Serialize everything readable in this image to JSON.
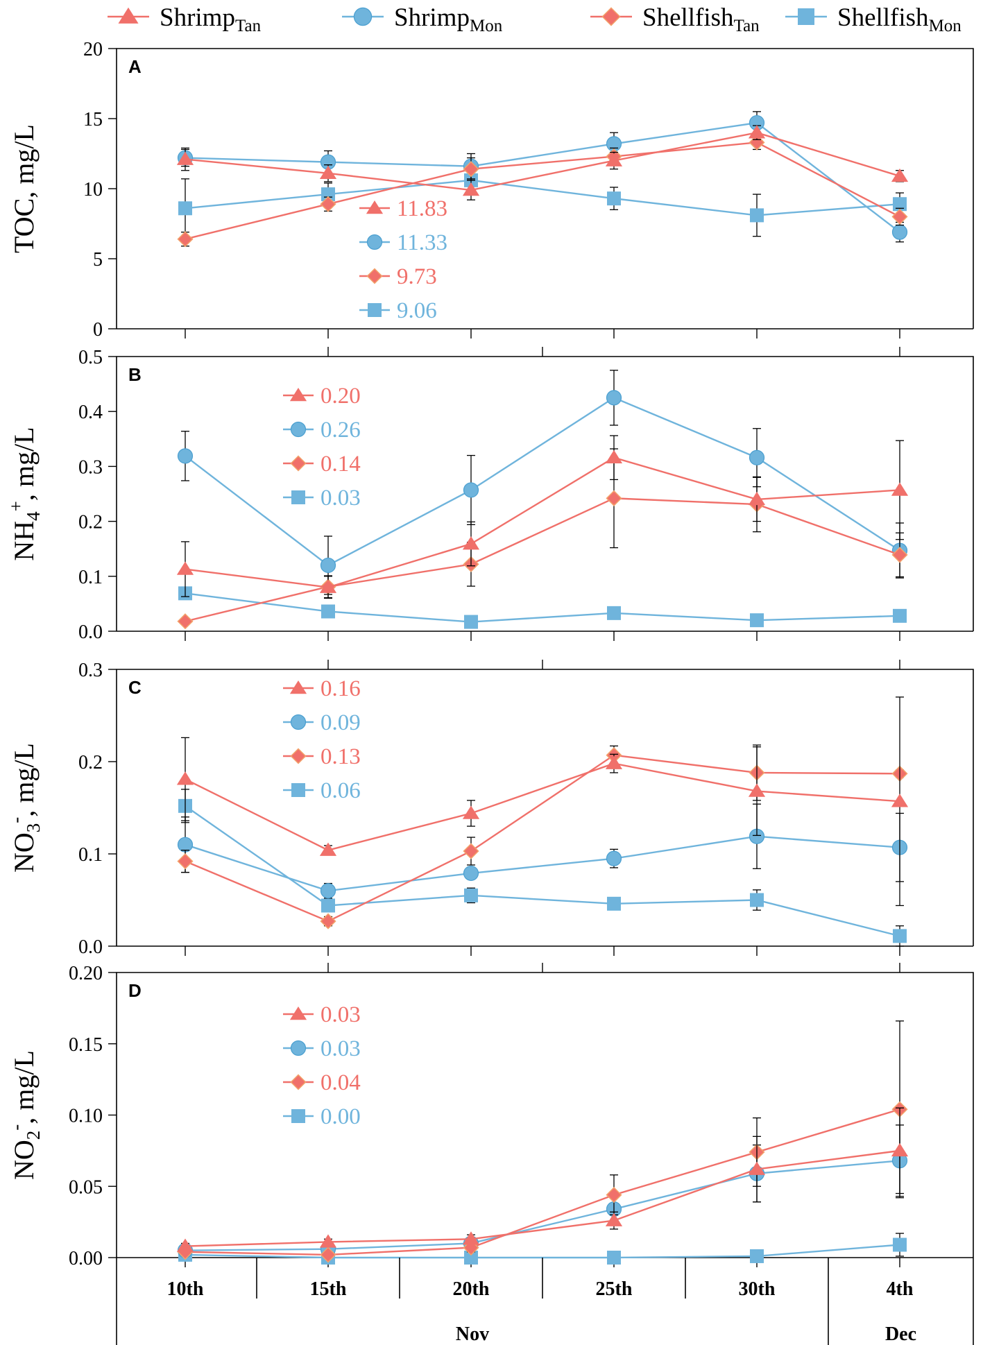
{
  "legend": [
    {
      "base": "Shrimp",
      "sub": "Tan",
      "color": "#F0706A",
      "marker": "triangle"
    },
    {
      "base": "Shrimp",
      "sub": "Mon",
      "color": "#6FB4DC",
      "marker": "circle"
    },
    {
      "base": "Shellfish",
      "sub": "Tan",
      "color": "#F0706A",
      "marker": "diamond"
    },
    {
      "base": "Shellfish",
      "sub": "Mon",
      "color": "#6FB4DC",
      "marker": "square"
    }
  ],
  "xaxis": {
    "days": [
      "10th",
      "15th",
      "20th",
      "25th",
      "30th",
      "4th"
    ],
    "months": [
      {
        "label": "Nov"
      },
      {
        "label": "Dec"
      }
    ]
  },
  "chart_data": [
    {
      "type": "line",
      "panel": "A",
      "ylabel_parts": [
        {
          "t": "TOC, mg/L",
          "s": ""
        }
      ],
      "ylim": [
        0,
        20
      ],
      "yticks": [
        0,
        5,
        10,
        15,
        20
      ],
      "ytick_labels": [
        "0",
        "5",
        "10",
        "15",
        "20"
      ],
      "categories": [
        "10th",
        "15th",
        "20th",
        "25th",
        "30th",
        "4th"
      ],
      "series": [
        {
          "name": "Shrimp Tan",
          "values": [
            12.1,
            11.1,
            9.9,
            12.0,
            14.0,
            10.9
          ],
          "err": [
            0.8,
            0.6,
            0.7,
            0.6,
            0.5,
            0.4
          ]
        },
        {
          "name": "Shrimp Mon",
          "values": [
            12.2,
            11.9,
            11.6,
            13.2,
            14.7,
            6.9
          ],
          "err": [
            0.6,
            0.8,
            0.9,
            0.8,
            0.8,
            0.7
          ]
        },
        {
          "name": "Shellfish Tan",
          "values": [
            6.4,
            8.9,
            11.4,
            12.3,
            13.3,
            8.0
          ],
          "err": [
            0.5,
            0.5,
            0.8,
            0.6,
            0.5,
            0.6
          ]
        },
        {
          "name": "Shellfish Mon",
          "values": [
            8.6,
            9.6,
            10.6,
            9.3,
            8.1,
            8.9
          ],
          "err": [
            2.1,
            0.8,
            1.0,
            0.8,
            1.5,
            0.8
          ]
        }
      ],
      "annotations": [
        "11.83",
        "11.33",
        "9.73",
        "9.06"
      ]
    },
    {
      "type": "line",
      "panel": "B",
      "ylabel_parts": [
        {
          "t": "NH",
          "s": ""
        },
        {
          "t": "4",
          "s": "sub"
        },
        {
          "t": "+",
          "s": "sup"
        },
        {
          "t": ", mg/L",
          "s": ""
        }
      ],
      "ylim": [
        0,
        0.5
      ],
      "yticks": [
        0,
        0.1,
        0.2,
        0.3,
        0.4,
        0.5
      ],
      "ytick_labels": [
        "0.0",
        "0.1",
        "0.2",
        "0.3",
        "0.4",
        "0.5"
      ],
      "categories": [
        "10th",
        "15th",
        "20th",
        "25th",
        "30th",
        "4th"
      ],
      "series": [
        {
          "name": "Shrimp Tan",
          "values": [
            0.113,
            0.08,
            0.159,
            0.316,
            0.24,
            0.257
          ],
          "err": [
            0.05,
            0.02,
            0.04,
            0.04,
            0.04,
            0.09
          ]
        },
        {
          "name": "Shrimp Mon",
          "values": [
            0.319,
            0.12,
            0.257,
            0.425,
            0.316,
            0.147
          ],
          "err": [
            0.045,
            0.053,
            0.063,
            0.05,
            0.053,
            0.05
          ]
        },
        {
          "name": "Shellfish Tan",
          "values": [
            0.018,
            0.081,
            0.122,
            0.242,
            0.231,
            0.139
          ],
          "err": [
            0.005,
            0.02,
            0.04,
            0.09,
            0.05,
            0.04
          ]
        },
        {
          "name": "Shellfish Mon",
          "values": [
            0.069,
            0.036,
            0.017,
            0.033,
            0.02,
            0.028
          ],
          "err": [
            0.005,
            0.005,
            0.004,
            0.004,
            0.004,
            0.004
          ]
        }
      ],
      "annotations": [
        "0.20",
        "0.26",
        "0.14",
        "0.03"
      ]
    },
    {
      "type": "line",
      "panel": "C",
      "ylabel_parts": [
        {
          "t": "NO",
          "s": ""
        },
        {
          "t": "3",
          "s": "sub"
        },
        {
          "t": "-",
          "s": "sup"
        },
        {
          "t": ", mg/L",
          "s": ""
        }
      ],
      "ylim": [
        0,
        0.3
      ],
      "yticks": [
        0,
        0.1,
        0.2,
        0.3
      ],
      "ytick_labels": [
        "0.0",
        "0.1",
        "0.2",
        "0.3"
      ],
      "categories": [
        "10th",
        "15th",
        "20th",
        "25th",
        "30th",
        "4th"
      ],
      "series": [
        {
          "name": "Shrimp Tan",
          "values": [
            0.181,
            0.104,
            0.144,
            0.198,
            0.168,
            0.157
          ],
          "err": [
            0.045,
            0.005,
            0.014,
            0.01,
            0.048,
            0.113
          ]
        },
        {
          "name": "Shrimp Mon",
          "values": [
            0.11,
            0.06,
            0.079,
            0.095,
            0.119,
            0.107
          ],
          "err": [
            0.03,
            0.008,
            0.005,
            0.01,
            0.035,
            0.037
          ]
        },
        {
          "name": "Shellfish Tan",
          "values": [
            0.092,
            0.027,
            0.103,
            0.207,
            0.188,
            0.187
          ],
          "err": [
            0.012,
            0.005,
            0.015,
            0.01,
            0.03,
            0.004
          ]
        },
        {
          "name": "Shellfish Mon",
          "values": [
            0.152,
            0.044,
            0.055,
            0.046,
            0.05,
            0.011
          ],
          "err": [
            0.018,
            0.005,
            0.008,
            0.003,
            0.011,
            0.011
          ]
        }
      ],
      "annotations": [
        "0.16",
        "0.09",
        "0.13",
        "0.06"
      ]
    },
    {
      "type": "line",
      "panel": "D",
      "ylabel_parts": [
        {
          "t": "NO",
          "s": ""
        },
        {
          "t": "2",
          "s": "sub"
        },
        {
          "t": "-",
          "s": "sup"
        },
        {
          "t": ", mg/L",
          "s": ""
        }
      ],
      "ylim": [
        0,
        0.2
      ],
      "yticks": [
        0,
        0.05,
        0.1,
        0.15,
        0.2
      ],
      "ytick_labels": [
        "0.00",
        "0.05",
        "0.10",
        "0.15",
        "0.20"
      ],
      "categories": [
        "10th",
        "15th",
        "20th",
        "25th",
        "30th",
        "4th"
      ],
      "series": [
        {
          "name": "Shrimp Tan",
          "values": [
            0.008,
            0.011,
            0.013,
            0.026,
            0.062,
            0.075
          ],
          "err": [
            0.002,
            0.002,
            0.003,
            0.006,
            0.023,
            0.03
          ]
        },
        {
          "name": "Shrimp Mon",
          "values": [
            0.005,
            0.006,
            0.01,
            0.034,
            0.059,
            0.068
          ],
          "err": [
            0.002,
            0.002,
            0.003,
            0.01,
            0.02,
            0.025
          ]
        },
        {
          "name": "Shellfish Tan",
          "values": [
            0.004,
            0.002,
            0.007,
            0.044,
            0.074,
            0.104
          ],
          "err": [
            0.002,
            0.002,
            0.003,
            0.014,
            0.024,
            0.062
          ]
        },
        {
          "name": "Shellfish Mon",
          "values": [
            0.002,
            0.0,
            0.0,
            0.0,
            0.001,
            0.009
          ],
          "err": [
            0.001,
            0.0005,
            0.0005,
            0.0005,
            0.0005,
            0.008
          ]
        }
      ],
      "annotations": [
        "0.03",
        "0.03",
        "0.04",
        "0.00"
      ]
    }
  ]
}
